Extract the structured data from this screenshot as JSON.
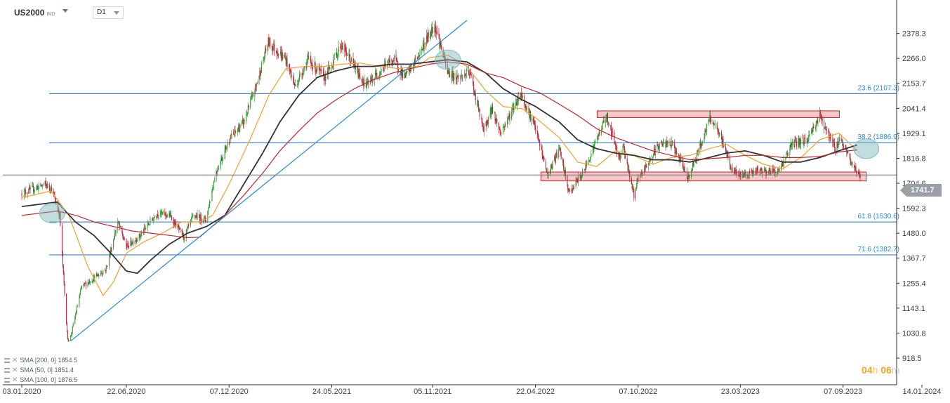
{
  "header": {
    "symbol": "US2000",
    "symbol_tag": "IND",
    "timeframe": "D1"
  },
  "timer": {
    "hours": "04",
    "hours_unit": "h",
    "minutes": "06",
    "minutes_unit": "m"
  },
  "legend": [
    {
      "label": "SMA [200, 0]",
      "value": "1854.5",
      "color": "#c0272d"
    },
    {
      "label": "SMA [50, 0]",
      "value": "1851.4",
      "color": "#f0a030"
    },
    {
      "label": "SMA [100, 0]",
      "value": "1876.5",
      "color": "#333333"
    }
  ],
  "current_price": {
    "label": "1741.7",
    "value": 1741.7
  },
  "chart_data": {
    "type": "candlestick",
    "ylim": [
      918.5,
      2437
    ],
    "y_ticks": [
      {
        "value": 2378.3,
        "label": "2378.3"
      },
      {
        "value": 2266.0,
        "label": "2266.0"
      },
      {
        "value": 2153.7,
        "label": "2153.7"
      },
      {
        "value": 2041.4,
        "label": "2041.4"
      },
      {
        "value": 1929.1,
        "label": "1929.1"
      },
      {
        "value": 1816.8,
        "label": "1816.8"
      },
      {
        "value": 1704.6,
        "label": "1704.6"
      },
      {
        "value": 1592.3,
        "label": "1592.3"
      },
      {
        "value": 1480.0,
        "label": "1480.0"
      },
      {
        "value": 1367.7,
        "label": "1367.7"
      },
      {
        "value": 1255.4,
        "label": "1255.4"
      },
      {
        "value": 1143.1,
        "label": "1143.1"
      },
      {
        "value": 1030.8,
        "label": "1030.8"
      },
      {
        "value": 918.5,
        "label": "918.5"
      }
    ],
    "x_ticks": [
      {
        "date": "2020-01-03",
        "label": "03.01.2020"
      },
      {
        "date": "2020-06-22",
        "label": "22.06.2020"
      },
      {
        "date": "2020-12-07",
        "label": "07.12.2020"
      },
      {
        "date": "2021-05-24",
        "label": "24.05.2021"
      },
      {
        "date": "2021-11-05",
        "label": "05.11.2021"
      },
      {
        "date": "2022-04-22",
        "label": "22.04.2022"
      },
      {
        "date": "2022-10-07",
        "label": "07.10.2022"
      },
      {
        "date": "2023-03-23",
        "label": "23.03.2023"
      },
      {
        "date": "2023-09-07",
        "label": "07.09.2023"
      },
      {
        "date": "2024-01-14",
        "label": "14.01.2024"
      }
    ],
    "fibonacci": [
      {
        "level": "23.6",
        "value": 2107.3,
        "label": "23.6 (2107.3)"
      },
      {
        "level": "38.2",
        "value": 1886.9,
        "label": "38.2 (1886.9)"
      },
      {
        "level": "61.8",
        "value": 1530.6,
        "label": "61.8 (1530.6)"
      },
      {
        "level": "71.6",
        "value": 1382.7,
        "label": "71.6 (1382.7)"
      }
    ],
    "price_path": [
      [
        "2020-01-03",
        1660
      ],
      [
        "2020-02-10",
        1700
      ],
      [
        "2020-02-21",
        1680
      ],
      [
        "2020-03-05",
        1560
      ],
      [
        "2020-03-12",
        1250
      ],
      [
        "2020-03-18",
        1000
      ],
      [
        "2020-03-23",
        1015
      ],
      [
        "2020-04-10",
        1240
      ],
      [
        "2020-05-01",
        1280
      ],
      [
        "2020-05-20",
        1320
      ],
      [
        "2020-06-08",
        1530
      ],
      [
        "2020-06-22",
        1420
      ],
      [
        "2020-07-15",
        1470
      ],
      [
        "2020-08-10",
        1570
      ],
      [
        "2020-09-01",
        1560
      ],
      [
        "2020-09-24",
        1460
      ],
      [
        "2020-10-10",
        1560
      ],
      [
        "2020-10-30",
        1540
      ],
      [
        "2020-11-15",
        1750
      ],
      [
        "2020-12-07",
        1900
      ],
      [
        "2020-12-31",
        1980
      ],
      [
        "2021-01-20",
        2140
      ],
      [
        "2021-02-09",
        2340
      ],
      [
        "2021-03-10",
        2260
      ],
      [
        "2021-03-25",
        2140
      ],
      [
        "2021-04-15",
        2260
      ],
      [
        "2021-05-12",
        2180
      ],
      [
        "2021-05-24",
        2240
      ],
      [
        "2021-06-08",
        2330
      ],
      [
        "2021-07-19",
        2140
      ],
      [
        "2021-08-20",
        2240
      ],
      [
        "2021-09-03",
        2260
      ],
      [
        "2021-09-20",
        2180
      ],
      [
        "2021-10-05",
        2240
      ],
      [
        "2021-11-08",
        2420
      ],
      [
        "2021-11-30",
        2200
      ],
      [
        "2021-12-15",
        2180
      ],
      [
        "2022-01-05",
        2200
      ],
      [
        "2022-01-27",
        1940
      ],
      [
        "2022-02-10",
        2040
      ],
      [
        "2022-02-24",
        1930
      ],
      [
        "2022-03-29",
        2110
      ],
      [
        "2022-04-22",
        1950
      ],
      [
        "2022-05-12",
        1740
      ],
      [
        "2022-05-31",
        1860
      ],
      [
        "2022-06-16",
        1660
      ],
      [
        "2022-07-10",
        1760
      ],
      [
        "2022-08-16",
        2010
      ],
      [
        "2022-09-06",
        1820
      ],
      [
        "2022-09-12",
        1880
      ],
      [
        "2022-09-30",
        1650
      ],
      [
        "2022-10-07",
        1720
      ],
      [
        "2022-11-10",
        1880
      ],
      [
        "2022-12-01",
        1880
      ],
      [
        "2022-12-28",
        1730
      ],
      [
        "2023-01-20",
        1900
      ],
      [
        "2023-02-02",
        2000
      ],
      [
        "2023-02-22",
        1890
      ],
      [
        "2023-03-10",
        1760
      ],
      [
        "2023-03-23",
        1740
      ],
      [
        "2023-04-20",
        1760
      ],
      [
        "2023-05-25",
        1760
      ],
      [
        "2023-06-15",
        1880
      ],
      [
        "2023-07-10",
        1900
      ],
      [
        "2023-07-31",
        2010
      ],
      [
        "2023-08-25",
        1860
      ],
      [
        "2023-09-01",
        1910
      ],
      [
        "2023-09-20",
        1800
      ],
      [
        "2023-09-29",
        1760
      ],
      [
        "2023-10-05",
        1741.7
      ]
    ],
    "series": [
      {
        "name": "SMA [50, 0]",
        "color": "#f0a030",
        "points": [
          [
            "2020-01-03",
            1640
          ],
          [
            "2020-02-20",
            1670
          ],
          [
            "2020-03-20",
            1560
          ],
          [
            "2020-04-20",
            1330
          ],
          [
            "2020-05-15",
            1200
          ],
          [
            "2020-06-01",
            1260
          ],
          [
            "2020-06-22",
            1390
          ],
          [
            "2020-07-20",
            1440
          ],
          [
            "2020-08-20",
            1480
          ],
          [
            "2020-09-20",
            1530
          ],
          [
            "2020-10-20",
            1530
          ],
          [
            "2020-11-10",
            1560
          ],
          [
            "2020-12-07",
            1700
          ],
          [
            "2021-01-10",
            1900
          ],
          [
            "2021-02-10",
            2100
          ],
          [
            "2021-03-10",
            2220
          ],
          [
            "2021-04-10",
            2230
          ],
          [
            "2021-05-10",
            2230
          ],
          [
            "2021-06-10",
            2240
          ],
          [
            "2021-07-10",
            2245
          ],
          [
            "2021-08-10",
            2230
          ],
          [
            "2021-09-10",
            2220
          ],
          [
            "2021-10-10",
            2230
          ],
          [
            "2021-11-01",
            2270
          ],
          [
            "2021-11-30",
            2280
          ],
          [
            "2021-12-31",
            2230
          ],
          [
            "2022-01-31",
            2120
          ],
          [
            "2022-02-28",
            2050
          ],
          [
            "2022-03-31",
            2040
          ],
          [
            "2022-04-22",
            2000
          ],
          [
            "2022-05-31",
            1910
          ],
          [
            "2022-06-30",
            1800
          ],
          [
            "2022-07-31",
            1780
          ],
          [
            "2022-08-31",
            1850
          ],
          [
            "2022-09-30",
            1830
          ],
          [
            "2022-10-31",
            1790
          ],
          [
            "2022-11-30",
            1820
          ],
          [
            "2022-12-31",
            1830
          ],
          [
            "2023-01-31",
            1860
          ],
          [
            "2023-02-28",
            1880
          ],
          [
            "2023-03-31",
            1830
          ],
          [
            "2023-04-30",
            1790
          ],
          [
            "2023-05-31",
            1770
          ],
          [
            "2023-06-30",
            1820
          ],
          [
            "2023-07-31",
            1900
          ],
          [
            "2023-08-31",
            1930
          ],
          [
            "2023-09-30",
            1851.4
          ]
        ]
      },
      {
        "name": "SMA [100, 0]",
        "color": "#333333",
        "points": [
          [
            "2020-01-03",
            1600
          ],
          [
            "2020-03-01",
            1620
          ],
          [
            "2020-03-31",
            1530
          ],
          [
            "2020-04-30",
            1470
          ],
          [
            "2020-05-31",
            1380
          ],
          [
            "2020-06-22",
            1310
          ],
          [
            "2020-07-10",
            1300
          ],
          [
            "2020-08-01",
            1360
          ],
          [
            "2020-08-31",
            1430
          ],
          [
            "2020-09-30",
            1480
          ],
          [
            "2020-10-31",
            1510
          ],
          [
            "2020-11-30",
            1560
          ],
          [
            "2020-12-31",
            1700
          ],
          [
            "2021-01-31",
            1840
          ],
          [
            "2021-02-28",
            1980
          ],
          [
            "2021-03-31",
            2100
          ],
          [
            "2021-04-30",
            2180
          ],
          [
            "2021-05-31",
            2210
          ],
          [
            "2021-06-30",
            2230
          ],
          [
            "2021-07-31",
            2230
          ],
          [
            "2021-08-31",
            2240
          ],
          [
            "2021-09-30",
            2240
          ],
          [
            "2021-10-31",
            2250
          ],
          [
            "2021-11-30",
            2260
          ],
          [
            "2021-12-31",
            2250
          ],
          [
            "2022-01-31",
            2200
          ],
          [
            "2022-02-28",
            2130
          ],
          [
            "2022-03-31",
            2080
          ],
          [
            "2022-04-22",
            2050
          ],
          [
            "2022-05-31",
            1980
          ],
          [
            "2022-06-30",
            1900
          ],
          [
            "2022-07-31",
            1860
          ],
          [
            "2022-08-31",
            1840
          ],
          [
            "2022-09-30",
            1830
          ],
          [
            "2022-10-31",
            1810
          ],
          [
            "2022-11-30",
            1810
          ],
          [
            "2022-12-31",
            1800
          ],
          [
            "2023-01-31",
            1820
          ],
          [
            "2023-02-28",
            1840
          ],
          [
            "2023-03-31",
            1850
          ],
          [
            "2023-04-30",
            1830
          ],
          [
            "2023-05-31",
            1800
          ],
          [
            "2023-06-30",
            1800
          ],
          [
            "2023-07-31",
            1820
          ],
          [
            "2023-08-31",
            1850
          ],
          [
            "2023-09-30",
            1876.5
          ]
        ]
      },
      {
        "name": "SMA [200, 0]",
        "color": "#c0272d",
        "points": [
          [
            "2020-01-03",
            1560
          ],
          [
            "2020-03-01",
            1580
          ],
          [
            "2020-04-01",
            1560
          ],
          [
            "2020-05-01",
            1530
          ],
          [
            "2020-06-01",
            1510
          ],
          [
            "2020-07-01",
            1490
          ],
          [
            "2020-08-01",
            1480
          ],
          [
            "2020-09-01",
            1470
          ],
          [
            "2020-10-01",
            1460
          ],
          [
            "2020-10-20",
            1462
          ],
          [
            "2020-11-30",
            1560
          ],
          [
            "2020-12-31",
            1650
          ],
          [
            "2021-01-31",
            1750
          ],
          [
            "2021-02-28",
            1850
          ],
          [
            "2021-03-31",
            1940
          ],
          [
            "2021-04-30",
            2020
          ],
          [
            "2021-05-31",
            2080
          ],
          [
            "2021-06-30",
            2130
          ],
          [
            "2021-07-31",
            2170
          ],
          [
            "2021-08-31",
            2200
          ],
          [
            "2021-09-30",
            2220
          ],
          [
            "2021-10-31",
            2240
          ],
          [
            "2021-11-30",
            2250
          ],
          [
            "2021-12-31",
            2240
          ],
          [
            "2022-01-31",
            2200
          ],
          [
            "2022-02-28",
            2180
          ],
          [
            "2022-03-31",
            2140
          ],
          [
            "2022-04-30",
            2110
          ],
          [
            "2022-05-31",
            2060
          ],
          [
            "2022-06-30",
            2010
          ],
          [
            "2022-07-31",
            1950
          ],
          [
            "2022-08-31",
            1910
          ],
          [
            "2022-09-30",
            1880
          ],
          [
            "2022-10-31",
            1850
          ],
          [
            "2022-11-30",
            1830
          ],
          [
            "2022-12-31",
            1810
          ],
          [
            "2023-01-31",
            1815
          ],
          [
            "2023-02-28",
            1820
          ],
          [
            "2023-03-31",
            1830
          ],
          [
            "2023-04-30",
            1830
          ],
          [
            "2023-05-31",
            1820
          ],
          [
            "2023-06-30",
            1820
          ],
          [
            "2023-07-31",
            1825
          ],
          [
            "2023-08-31",
            1845
          ],
          [
            "2023-09-30",
            1854.5
          ]
        ]
      }
    ],
    "trendline": {
      "from": [
        "2020-03-23",
        995
      ],
      "to": [
        "2021-12-31",
        2437
      ]
    },
    "zones": [
      {
        "from_date": "2022-08-01",
        "to_date": "2023-09-01",
        "low": 2000,
        "high": 2030
      },
      {
        "from_date": "2022-05-01",
        "to_date": "2023-10-15",
        "low": 1715,
        "high": 1755
      }
    ],
    "circles": [
      {
        "date": "2020-02-22",
        "value": 1570
      },
      {
        "date": "2021-11-30",
        "value": 2260
      },
      {
        "date": "2023-10-15",
        "value": 1860
      }
    ]
  }
}
